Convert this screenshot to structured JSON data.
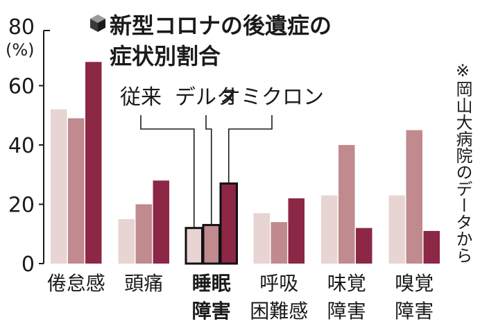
{
  "chart_data": {
    "type": "bar",
    "title_lines": [
      "新型コロナの後遺症の",
      "症状別割合"
    ],
    "y_unit": "(%)",
    "ylim": [
      0,
      80
    ],
    "y_ticks": [
      0,
      20,
      40,
      60,
      80
    ],
    "series": [
      {
        "name": "従来",
        "color": "#e8d4d2"
      },
      {
        "name": "デルタ",
        "color": "#c08a8e"
      },
      {
        "name": "オミクロン",
        "color": "#8c2745"
      }
    ],
    "categories": [
      {
        "lines": [
          "倦怠感"
        ],
        "values": [
          52,
          49,
          68
        ],
        "emphasis": false
      },
      {
        "lines": [
          "頭痛"
        ],
        "values": [
          15,
          20,
          28
        ],
        "emphasis": false
      },
      {
        "lines": [
          "睡眠",
          "障害"
        ],
        "values": [
          12,
          13,
          27
        ],
        "emphasis": true
      },
      {
        "lines": [
          "呼吸",
          "困難感"
        ],
        "values": [
          17,
          14,
          22
        ],
        "emphasis": false
      },
      {
        "lines": [
          "味覚",
          "障害"
        ],
        "values": [
          23,
          40,
          12
        ],
        "emphasis": false
      },
      {
        "lines": [
          "嗅覚",
          "障害"
        ],
        "values": [
          23,
          45,
          11
        ],
        "emphasis": false
      }
    ],
    "source_note": "※岡山大病院のデータから",
    "grid": false,
    "legend_placement": "leader-lines-to-third-category"
  }
}
